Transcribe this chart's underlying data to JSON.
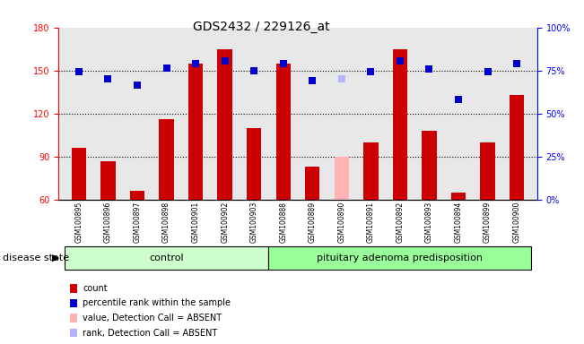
{
  "title": "GDS2432 / 229126_at",
  "samples": [
    "GSM100895",
    "GSM100896",
    "GSM100897",
    "GSM100898",
    "GSM100901",
    "GSM100902",
    "GSM100903",
    "GSM100888",
    "GSM100889",
    "GSM100890",
    "GSM100891",
    "GSM100892",
    "GSM100893",
    "GSM100894",
    "GSM100899",
    "GSM100900"
  ],
  "bar_values": [
    96,
    87,
    66,
    116,
    155,
    165,
    110,
    155,
    83,
    90,
    100,
    165,
    108,
    65,
    100,
    133
  ],
  "bar_colors": [
    "#cc0000",
    "#cc0000",
    "#cc0000",
    "#cc0000",
    "#cc0000",
    "#cc0000",
    "#cc0000",
    "#cc0000",
    "#cc0000",
    "#ffb3b3",
    "#cc0000",
    "#cc0000",
    "#cc0000",
    "#cc0000",
    "#cc0000",
    "#cc0000"
  ],
  "rank_values": [
    149,
    144,
    140,
    152,
    155,
    157,
    150,
    155,
    143,
    144,
    149,
    157,
    151,
    130,
    149,
    155
  ],
  "rank_colors": [
    "#0000cc",
    "#0000cc",
    "#0000cc",
    "#0000cc",
    "#0000cc",
    "#0000cc",
    "#0000cc",
    "#0000cc",
    "#0000cc",
    "#b3b3ff",
    "#0000cc",
    "#0000cc",
    "#0000cc",
    "#0000cc",
    "#0000cc",
    "#0000cc"
  ],
  "ylim_left": [
    60,
    180
  ],
  "ylim_right": [
    0,
    100
  ],
  "yticks_left": [
    60,
    90,
    120,
    150,
    180
  ],
  "yticks_right": [
    0,
    25,
    50,
    75,
    100
  ],
  "ytick_labels_right": [
    "0%",
    "25%",
    "50%",
    "75%",
    "100%"
  ],
  "hlines": [
    90,
    120,
    150
  ],
  "control_count": 7,
  "disease_count": 9,
  "control_label": "control",
  "disease_label": "pituitary adenoma predisposition",
  "disease_state_label": "disease state",
  "legend_items": [
    {
      "label": "count",
      "color": "#cc0000"
    },
    {
      "label": "percentile rank within the sample",
      "color": "#0000cc"
    },
    {
      "label": "value, Detection Call = ABSENT",
      "color": "#ffb3b3"
    },
    {
      "label": "rank, Detection Call = ABSENT",
      "color": "#b3b3ff"
    }
  ],
  "bar_width": 0.5,
  "bg_color_plot": "#e8e8e8",
  "bg_color_control": "#ccffcc",
  "bg_color_disease": "#99ff99",
  "title_fontsize": 10,
  "tick_fontsize": 7,
  "label_fontsize": 8,
  "sample_fontsize": 5.5
}
